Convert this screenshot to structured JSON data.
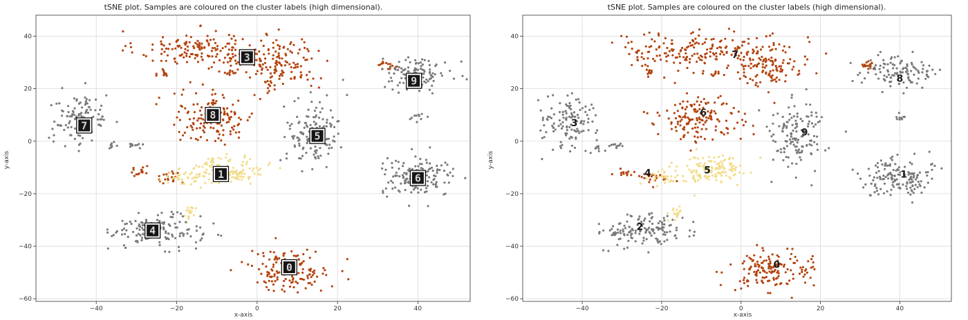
{
  "colors": {
    "gray": "#7a7a7a",
    "dark_orange": "#b4440e",
    "light_yellow": "#f2dd8c",
    "grid": "#d9d9d9"
  },
  "chart_data": [
    {
      "type": "scatter",
      "title": "tSNE plot. Samples are coloured on the cluster labels (high dimensional).",
      "xlabel": "x-axis",
      "ylabel": "y-axis",
      "xlim": [
        -55,
        53
      ],
      "ylim": [
        -61,
        48
      ],
      "xticks": [
        -40,
        -20,
        0,
        20,
        40
      ],
      "yticks": [
        -60,
        -40,
        -20,
        0,
        20,
        40
      ],
      "grid": true,
      "annotations": "digit-image-thumbnails",
      "clusters": [
        {
          "cx": -14,
          "cy": 35,
          "sx": 8,
          "sy": 3.5,
          "n": 160,
          "color": "dark_orange",
          "digit": "3",
          "ix": -2.5,
          "iy": 32
        },
        {
          "cx": 6,
          "cy": 29,
          "sx": 4.5,
          "sy": 5,
          "n": 140,
          "color": "dark_orange",
          "digit": "",
          "ix": 0,
          "iy": 0
        },
        {
          "cx": -23,
          "cy": 26,
          "sx": 0.8,
          "sy": 1.2,
          "n": 12,
          "color": "dark_orange",
          "digit": "",
          "ix": 0,
          "iy": 0
        },
        {
          "cx": -7,
          "cy": 26,
          "sx": 1,
          "sy": 0.7,
          "n": 10,
          "color": "dark_orange",
          "digit": "",
          "ix": 0,
          "iy": 0
        },
        {
          "cx": -11,
          "cy": 9,
          "sx": 5.2,
          "sy": 4.8,
          "n": 150,
          "color": "dark_orange",
          "digit": "8",
          "ix": -11,
          "iy": 10
        },
        {
          "cx": 8,
          "cy": -49,
          "sx": 5,
          "sy": 4,
          "n": 150,
          "color": "dark_orange",
          "digit": "0",
          "ix": 8,
          "iy": -48
        },
        {
          "cx": 32,
          "cy": 29,
          "sx": 1.3,
          "sy": 0.8,
          "n": 15,
          "color": "dark_orange",
          "digit": "",
          "ix": 0,
          "iy": 0
        },
        {
          "cx": -29,
          "cy": -12,
          "sx": 1.2,
          "sy": 1,
          "n": 14,
          "color": "dark_orange",
          "digit": "",
          "ix": 0,
          "iy": 0
        },
        {
          "cx": -22,
          "cy": -14,
          "sx": 1.5,
          "sy": 1.5,
          "n": 20,
          "color": "dark_orange",
          "digit": "",
          "ix": 0,
          "iy": 0
        },
        {
          "cx": -7,
          "cy": -11,
          "sx": 4.5,
          "sy": 2.7,
          "n": 130,
          "color": "light_yellow",
          "digit": "1",
          "ix": -9,
          "iy": -12.5
        },
        {
          "cx": -19,
          "cy": -14,
          "sx": 2.2,
          "sy": 1.4,
          "n": 30,
          "color": "light_yellow",
          "digit": "",
          "ix": 0,
          "iy": 0
        },
        {
          "cx": -16.5,
          "cy": -27,
          "sx": 1,
          "sy": 1.4,
          "n": 18,
          "color": "light_yellow",
          "digit": "",
          "ix": 0,
          "iy": 0
        },
        {
          "cx": -44,
          "cy": 8,
          "sx": 3.5,
          "sy": 5,
          "n": 120,
          "color": "gray",
          "digit": "7",
          "ix": -43,
          "iy": 6
        },
        {
          "cx": -25,
          "cy": -34,
          "sx": 5.5,
          "sy": 3,
          "n": 140,
          "color": "gray",
          "digit": "4",
          "ix": -26,
          "iy": -34
        },
        {
          "cx": 14,
          "cy": 3,
          "sx": 3.3,
          "sy": 6,
          "n": 140,
          "color": "gray",
          "digit": "5",
          "ix": 15,
          "iy": 2
        },
        {
          "cx": 40,
          "cy": -14,
          "sx": 4.5,
          "sy": 3.5,
          "n": 150,
          "color": "gray",
          "digit": "6",
          "ix": 40,
          "iy": -14
        },
        {
          "cx": 40,
          "cy": 26,
          "sx": 4.5,
          "sy": 3,
          "n": 110,
          "color": "gray",
          "digit": "9",
          "ix": 39,
          "iy": 23
        },
        {
          "cx": 40,
          "cy": 9,
          "sx": 0.8,
          "sy": 0.7,
          "n": 10,
          "color": "gray",
          "digit": "",
          "ix": 0,
          "iy": 0
        },
        {
          "cx": -36,
          "cy": -2.5,
          "sx": 0.5,
          "sy": 0.8,
          "n": 8,
          "color": "gray",
          "digit": "",
          "ix": 0,
          "iy": 0
        },
        {
          "cx": -31,
          "cy": -1.5,
          "sx": 1.5,
          "sy": 0.6,
          "n": 10,
          "color": "gray",
          "digit": "",
          "ix": 0,
          "iy": 0
        }
      ]
    },
    {
      "type": "scatter",
      "title": "tSNE plot. Samples are coloured on the cluster labels (high dimensional).",
      "xlabel": "x-axis",
      "ylabel": "y-axis",
      "xlim": [
        -55,
        53
      ],
      "ylim": [
        -61,
        48
      ],
      "xticks": [
        -40,
        -20,
        0,
        20,
        40
      ],
      "yticks": [
        -60,
        -40,
        -20,
        0,
        20,
        40
      ],
      "grid": true,
      "cluster_labels": [
        {
          "text": "0",
          "x": 9,
          "y": -47
        },
        {
          "text": "1",
          "x": 41,
          "y": -12.5
        },
        {
          "text": "2",
          "x": -25.5,
          "y": -32.5
        },
        {
          "text": "3",
          "x": -42,
          "y": 7
        },
        {
          "text": "4",
          "x": -23.5,
          "y": -12
        },
        {
          "text": "5",
          "x": -8.5,
          "y": -11
        },
        {
          "text": "6",
          "x": -9.5,
          "y": 11
        },
        {
          "text": "7",
          "x": -1.5,
          "y": 33
        },
        {
          "text": "8",
          "x": 40,
          "y": 24
        },
        {
          "text": "9",
          "x": 16,
          "y": 3.5
        }
      ],
      "clusters": [
        {
          "cx": -14,
          "cy": 35,
          "sx": 8,
          "sy": 3.5,
          "n": 160,
          "color": "dark_orange"
        },
        {
          "cx": 6,
          "cy": 29,
          "sx": 4.5,
          "sy": 5,
          "n": 140,
          "color": "dark_orange"
        },
        {
          "cx": -23,
          "cy": 26,
          "sx": 0.8,
          "sy": 1.2,
          "n": 12,
          "color": "dark_orange"
        },
        {
          "cx": -7,
          "cy": 26,
          "sx": 1,
          "sy": 0.7,
          "n": 10,
          "color": "dark_orange"
        },
        {
          "cx": -11,
          "cy": 9,
          "sx": 5.2,
          "sy": 4.8,
          "n": 150,
          "color": "dark_orange"
        },
        {
          "cx": 8,
          "cy": -49,
          "sx": 5,
          "sy": 4,
          "n": 150,
          "color": "dark_orange"
        },
        {
          "cx": 32,
          "cy": 29,
          "sx": 1.3,
          "sy": 0.8,
          "n": 15,
          "color": "dark_orange"
        },
        {
          "cx": -29,
          "cy": -12,
          "sx": 1.2,
          "sy": 1,
          "n": 14,
          "color": "dark_orange"
        },
        {
          "cx": -22,
          "cy": -14,
          "sx": 1.5,
          "sy": 1.5,
          "n": 20,
          "color": "dark_orange"
        },
        {
          "cx": -7,
          "cy": -11,
          "sx": 4.5,
          "sy": 2.7,
          "n": 130,
          "color": "light_yellow"
        },
        {
          "cx": -19,
          "cy": -14,
          "sx": 2.2,
          "sy": 1.4,
          "n": 30,
          "color": "light_yellow"
        },
        {
          "cx": -16.5,
          "cy": -27,
          "sx": 1,
          "sy": 1.4,
          "n": 18,
          "color": "light_yellow"
        },
        {
          "cx": -44,
          "cy": 8,
          "sx": 3.5,
          "sy": 5,
          "n": 120,
          "color": "gray"
        },
        {
          "cx": -25,
          "cy": -34,
          "sx": 5.5,
          "sy": 3,
          "n": 140,
          "color": "gray"
        },
        {
          "cx": 14,
          "cy": 3,
          "sx": 3.3,
          "sy": 6,
          "n": 140,
          "color": "gray"
        },
        {
          "cx": 40,
          "cy": -14,
          "sx": 4.5,
          "sy": 3.5,
          "n": 150,
          "color": "gray"
        },
        {
          "cx": 40,
          "cy": 26,
          "sx": 4.5,
          "sy": 3,
          "n": 110,
          "color": "gray"
        },
        {
          "cx": 40,
          "cy": 9,
          "sx": 0.8,
          "sy": 0.7,
          "n": 10,
          "color": "gray"
        },
        {
          "cx": -36,
          "cy": -2.5,
          "sx": 0.5,
          "sy": 0.8,
          "n": 8,
          "color": "gray"
        },
        {
          "cx": -31,
          "cy": -1.5,
          "sx": 1.5,
          "sy": 0.6,
          "n": 10,
          "color": "gray"
        }
      ]
    }
  ]
}
